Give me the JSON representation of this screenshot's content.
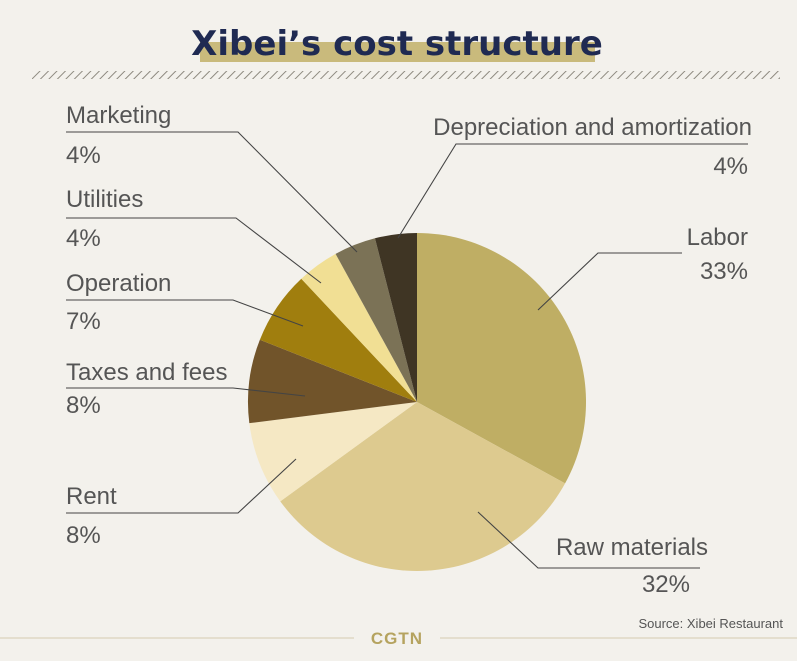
{
  "title": "Xibei’s cost structure",
  "source": "Source: Xibei Restaurant",
  "brand": "CGTN",
  "colors": {
    "background": "#f3f1ec",
    "title": "#1f2a52",
    "title_highlight": "#c9ba7c",
    "leader_line": "#444444",
    "label_text": "#555555"
  },
  "chart_data": {
    "type": "pie",
    "title": "Xibei’s cost structure",
    "start_angle_deg": 0,
    "direction": "clockwise",
    "slices": [
      {
        "label": "Labor",
        "value": 33,
        "value_label": "33%",
        "color": "#bfae64"
      },
      {
        "label": "Raw materials",
        "value": 32,
        "value_label": "32%",
        "color": "#ddca8f"
      },
      {
        "label": "Rent",
        "value": 8,
        "value_label": "8%",
        "color": "#f5e8c4"
      },
      {
        "label": "Taxes and fees",
        "value": 8,
        "value_label": "8%",
        "color": "#71542a"
      },
      {
        "label": "Operation",
        "value": 7,
        "value_label": "7%",
        "color": "#a07e0e"
      },
      {
        "label": "Utilities",
        "value": 4,
        "value_label": "4%",
        "color": "#f1df94"
      },
      {
        "label": "Marketing",
        "value": 4,
        "value_label": "4%",
        "color": "#7b7256"
      },
      {
        "label": "Depreciation and amortization",
        "value": 4,
        "value_label": "4%",
        "color": "#3f3524"
      }
    ],
    "source": "Source: Xibei Restaurant"
  }
}
